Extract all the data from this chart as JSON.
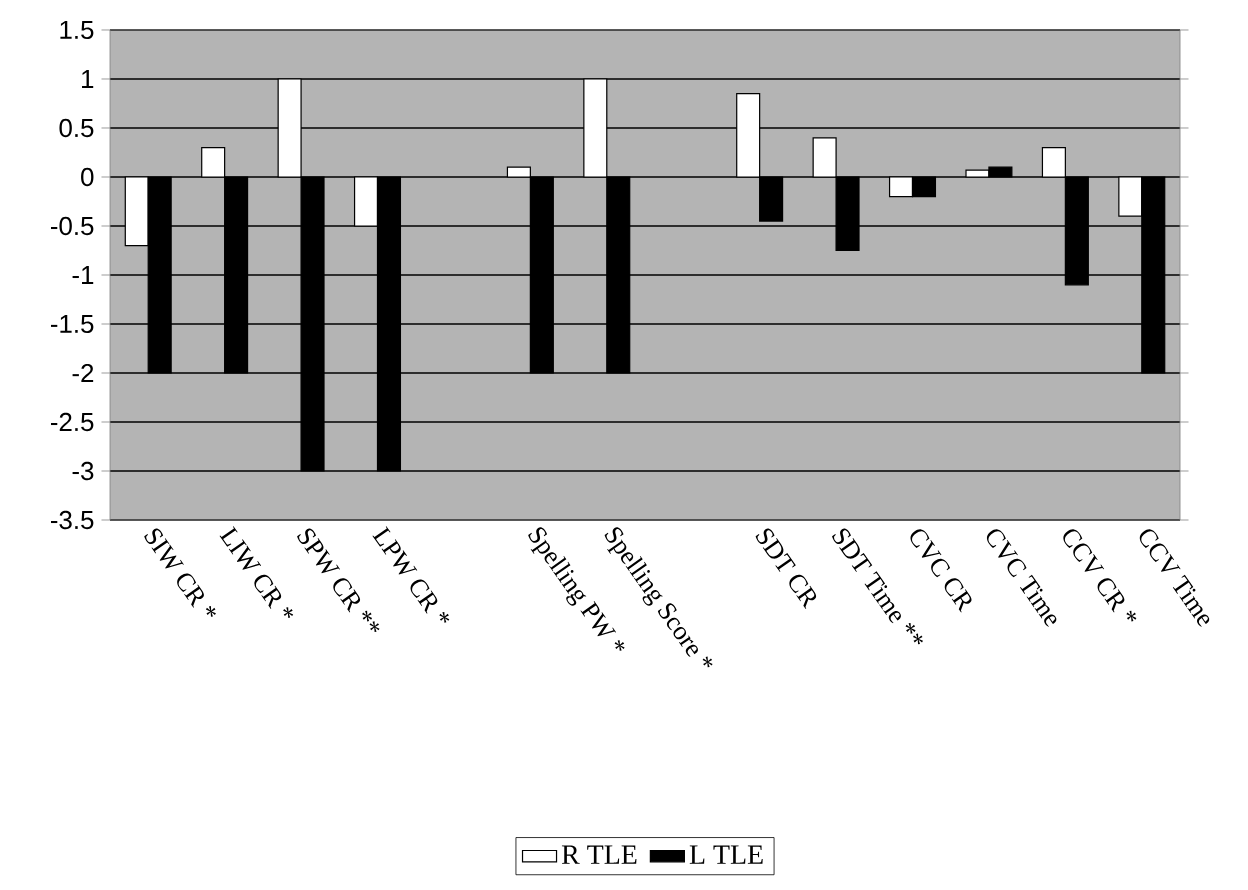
{
  "chart_data": {
    "type": "bar",
    "categories": [
      "SIW CR *",
      "LIW CR *",
      "SPW CR **",
      "LPW CR *",
      null,
      "Spelling PW *",
      "Spelling Score *",
      null,
      "SDT CR",
      "SDT Time **",
      "CVC CR",
      "CVC Time",
      "CCV CR *",
      "CCV Time"
    ],
    "series": [
      {
        "name": "R TLE",
        "color": "#ffffff",
        "values": [
          -0.7,
          0.3,
          1,
          -0.5,
          null,
          0.1,
          1,
          null,
          0.85,
          0.4,
          -0.2,
          0.07,
          0.3,
          -0.4
        ]
      },
      {
        "name": "L TLE",
        "color": "#000000",
        "values": [
          -2,
          -2,
          -3,
          -3,
          null,
          -2,
          -2,
          null,
          -0.45,
          -0.75,
          -0.2,
          0.1,
          -1.1,
          -2
        ]
      }
    ],
    "ylim": [
      -3.5,
      1.5
    ],
    "yticks": [
      -3.5,
      -3,
      -2.5,
      -2,
      -1.5,
      -1,
      -0.5,
      0,
      0.5,
      1,
      1.5
    ],
    "grid": "y",
    "legend": "bottom"
  }
}
